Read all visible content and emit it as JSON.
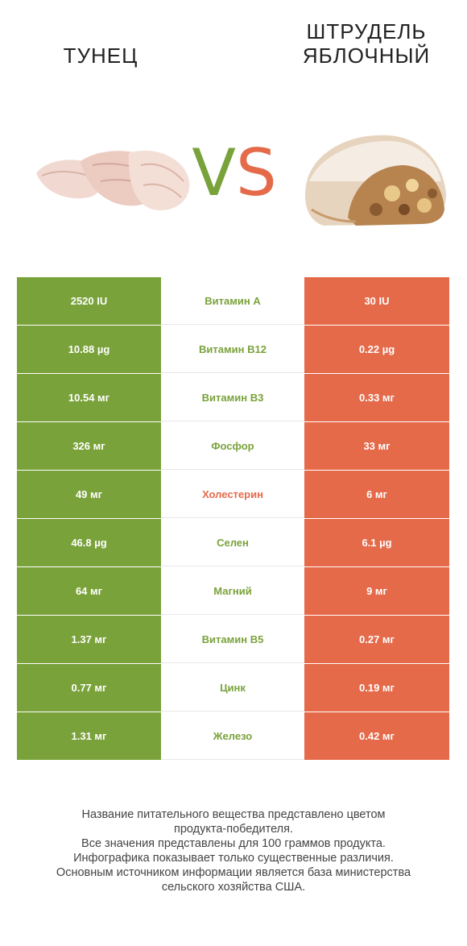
{
  "header": {
    "left_title": "ТУНЕЦ",
    "right_title_line1": "ШТРУДЕЛЬ",
    "right_title_line2": "ЯБЛОЧНЫЙ",
    "vs_v": "V",
    "vs_s": "S"
  },
  "colors": {
    "winner_left": "#7aa23b",
    "winner_right": "#e56a4a"
  },
  "rows": [
    {
      "left": "2520 IU",
      "name": "Витамин A",
      "right": "30 IU",
      "winner": "left"
    },
    {
      "left": "10.88 µg",
      "name": "Витамин B12",
      "right": "0.22 µg",
      "winner": "left"
    },
    {
      "left": "10.54 мг",
      "name": "Витамин B3",
      "right": "0.33 мг",
      "winner": "left"
    },
    {
      "left": "326 мг",
      "name": "Фосфор",
      "right": "33 мг",
      "winner": "left"
    },
    {
      "left": "49 мг",
      "name": "Холестерин",
      "right": "6 мг",
      "winner": "right"
    },
    {
      "left": "46.8 µg",
      "name": "Селен",
      "right": "6.1 µg",
      "winner": "left"
    },
    {
      "left": "64 мг",
      "name": "Магний",
      "right": "9 мг",
      "winner": "left"
    },
    {
      "left": "1.37 мг",
      "name": "Витамин B5",
      "right": "0.27 мг",
      "winner": "left"
    },
    {
      "left": "0.77 мг",
      "name": "Цинк",
      "right": "0.19 мг",
      "winner": "left"
    },
    {
      "left": "1.31 мг",
      "name": "Железо",
      "right": "0.42 мг",
      "winner": "left"
    }
  ],
  "footer": {
    "line1": "Название питательного вещества представлено цветом",
    "line2": "продукта-победителя.",
    "line3": "Все значения представлены для 100 граммов продукта.",
    "line4": "Инфографика показывает только существенные различия.",
    "line5": "Основным источником информации является база министерства",
    "line6": "сельского хозяйства США."
  }
}
